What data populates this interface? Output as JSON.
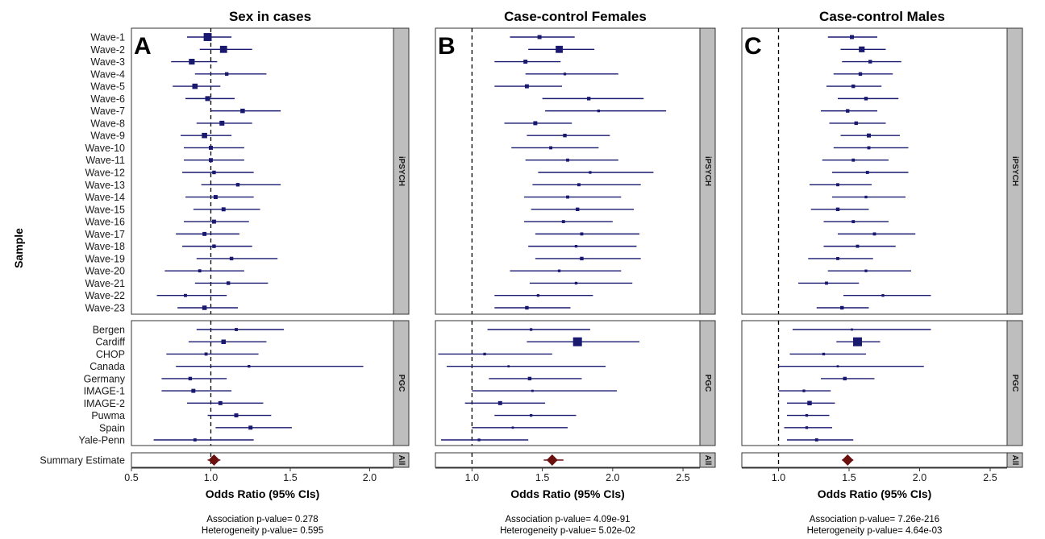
{
  "chart_data": {
    "type": "forest",
    "y_axis_label": "Sample",
    "x_axis_label": "Odds Ratio (95% CIs)",
    "reference_line": 1.0,
    "point_color": "#191970",
    "summary_color": "#6b0f0f",
    "strip_color": "#bebebe",
    "groups": [
      {
        "name": "iPSYCH",
        "rows": [
          "Wave-1",
          "Wave-2",
          "Wave-3",
          "Wave-4",
          "Wave-5",
          "Wave-6",
          "Wave-7",
          "Wave-8",
          "Wave-9",
          "Wave-10",
          "Wave-11",
          "Wave-12",
          "Wave-13",
          "Wave-14",
          "Wave-15",
          "Wave-16",
          "Wave-17",
          "Wave-18",
          "Wave-19",
          "Wave-20",
          "Wave-21",
          "Wave-22",
          "Wave-23"
        ]
      },
      {
        "name": "PGC",
        "rows": [
          "Bergen",
          "Cardiff",
          "CHOP",
          "Canada",
          "Germany",
          "IMAGE-1",
          "IMAGE-2",
          "Puwma",
          "Spain",
          "Yale-Penn"
        ]
      },
      {
        "name": "All",
        "rows": [
          "Summary Estimate"
        ]
      }
    ],
    "panels": [
      {
        "letter": "A",
        "title": "Sex in cases",
        "xlim": [
          0.5,
          2.15
        ],
        "xticks": [
          "0.5",
          "1.0",
          "1.5",
          "2.0"
        ],
        "association_p": "Association p-value= 0.278",
        "heterogeneity_p": "Heterogeneity p-value= 0.595",
        "estimates": {
          "iPSYCH": [
            [
              0.98,
              0.85,
              1.13,
              9
            ],
            [
              1.08,
              0.93,
              1.26,
              8
            ],
            [
              0.88,
              0.75,
              1.04,
              6.5
            ],
            [
              1.1,
              0.9,
              1.35,
              4
            ],
            [
              0.9,
              0.76,
              1.06,
              6
            ],
            [
              0.98,
              0.84,
              1.15,
              5.5
            ],
            [
              1.2,
              1.0,
              1.44,
              5
            ],
            [
              1.07,
              0.91,
              1.26,
              5.5
            ],
            [
              0.96,
              0.81,
              1.13,
              6
            ],
            [
              1.0,
              0.83,
              1.21,
              4.5
            ],
            [
              1.0,
              0.83,
              1.21,
              4.5
            ],
            [
              1.02,
              0.82,
              1.27,
              4
            ],
            [
              1.17,
              0.94,
              1.44,
              4
            ],
            [
              1.03,
              0.84,
              1.27,
              4.5
            ],
            [
              1.08,
              0.89,
              1.31,
              4.5
            ],
            [
              1.02,
              0.83,
              1.24,
              4.5
            ],
            [
              0.96,
              0.78,
              1.18,
              4.5
            ],
            [
              1.02,
              0.82,
              1.26,
              4
            ],
            [
              1.13,
              0.91,
              1.42,
              4
            ],
            [
              0.93,
              0.71,
              1.21,
              3.5
            ],
            [
              1.11,
              0.9,
              1.36,
              4
            ],
            [
              0.84,
              0.66,
              1.1,
              3.5
            ],
            [
              0.96,
              0.79,
              1.17,
              5
            ]
          ],
          "PGC": [
            [
              1.16,
              0.91,
              1.46,
              3.5
            ],
            [
              1.08,
              0.86,
              1.35,
              5
            ],
            [
              0.97,
              0.72,
              1.3,
              3.5
            ],
            [
              1.24,
              0.78,
              1.96,
              3
            ],
            [
              0.87,
              0.69,
              1.1,
              4
            ],
            [
              0.89,
              0.69,
              1.13,
              4.5
            ],
            [
              1.06,
              0.85,
              1.33,
              4.5
            ],
            [
              1.16,
              0.98,
              1.38,
              4.5
            ],
            [
              1.25,
              1.03,
              1.51,
              4.5
            ],
            [
              0.9,
              0.64,
              1.27,
              3.5
            ]
          ],
          "All": [
            [
              1.02,
              0.98,
              1.06,
              7
            ]
          ]
        }
      },
      {
        "letter": "B",
        "title": "Case-control Females",
        "xlim": [
          0.74,
          2.62
        ],
        "xticks": [
          "1.0",
          "1.5",
          "2.0",
          "2.5"
        ],
        "association_p": "Association p-value= 4.09e-91",
        "heterogeneity_p": "Heterogeneity p-value= 5.02e-02",
        "estimates": {
          "iPSYCH": [
            [
              1.48,
              1.27,
              1.73,
              4.5
            ],
            [
              1.62,
              1.4,
              1.87,
              8
            ],
            [
              1.38,
              1.16,
              1.63,
              4.5
            ],
            [
              1.66,
              1.38,
              2.04,
              3
            ],
            [
              1.39,
              1.16,
              1.64,
              4.5
            ],
            [
              1.83,
              1.5,
              2.22,
              4
            ],
            [
              1.9,
              1.52,
              2.38,
              3
            ],
            [
              1.45,
              1.23,
              1.71,
              4.5
            ],
            [
              1.66,
              1.39,
              1.98,
              4
            ],
            [
              1.56,
              1.28,
              1.9,
              3.5
            ],
            [
              1.68,
              1.38,
              2.04,
              3.5
            ],
            [
              1.84,
              1.47,
              2.29,
              3
            ],
            [
              1.76,
              1.43,
              2.2,
              3.5
            ],
            [
              1.68,
              1.37,
              2.06,
              3.5
            ],
            [
              1.75,
              1.42,
              2.15,
              4
            ],
            [
              1.65,
              1.37,
              2.0,
              3.5
            ],
            [
              1.78,
              1.45,
              2.19,
              3.5
            ],
            [
              1.74,
              1.4,
              2.17,
              3
            ],
            [
              1.78,
              1.45,
              2.2,
              4
            ],
            [
              1.62,
              1.27,
              2.06,
              3
            ],
            [
              1.74,
              1.41,
              2.14,
              3
            ],
            [
              1.47,
              1.16,
              1.86,
              3
            ],
            [
              1.39,
              1.16,
              1.7,
              4
            ]
          ],
          "PGC": [
            [
              1.42,
              1.11,
              1.84,
              3
            ],
            [
              1.75,
              1.39,
              2.19,
              10
            ],
            [
              1.09,
              0.76,
              1.57,
              3
            ],
            [
              1.26,
              0.82,
              1.95,
              2.5
            ],
            [
              1.41,
              1.12,
              1.78,
              4
            ],
            [
              1.43,
              1.0,
              2.03,
              2.5
            ],
            [
              1.2,
              0.95,
              1.52,
              4.5
            ],
            [
              1.42,
              1.16,
              1.74,
              3
            ],
            [
              1.29,
              1.0,
              1.68,
              2.5
            ],
            [
              1.05,
              0.78,
              1.4,
              3
            ]
          ],
          "All": [
            [
              1.57,
              1.51,
              1.65,
              7
            ]
          ]
        }
      },
      {
        "letter": "C",
        "title": "Case-control Males",
        "xlim": [
          0.74,
          2.62
        ],
        "xticks": [
          "1.0",
          "1.5",
          "2.0",
          "2.5"
        ],
        "association_p": "Association p-value= 7.26e-216",
        "heterogeneity_p": "Heterogeneity p-value= 4.64e-03",
        "estimates": {
          "iPSYCH": [
            [
              1.52,
              1.35,
              1.7,
              4.5
            ],
            [
              1.59,
              1.44,
              1.76,
              6.5
            ],
            [
              1.65,
              1.45,
              1.87,
              4
            ],
            [
              1.58,
              1.39,
              1.81,
              4
            ],
            [
              1.53,
              1.34,
              1.73,
              4
            ],
            [
              1.62,
              1.42,
              1.85,
              4
            ],
            [
              1.49,
              1.3,
              1.7,
              4
            ],
            [
              1.55,
              1.36,
              1.76,
              4
            ],
            [
              1.64,
              1.44,
              1.86,
              4.5
            ],
            [
              1.64,
              1.39,
              1.92,
              3.5
            ],
            [
              1.53,
              1.31,
              1.78,
              3.5
            ],
            [
              1.63,
              1.38,
              1.92,
              3.5
            ],
            [
              1.42,
              1.22,
              1.66,
              3.5
            ],
            [
              1.62,
              1.38,
              1.9,
              3
            ],
            [
              1.42,
              1.23,
              1.64,
              4
            ],
            [
              1.53,
              1.32,
              1.78,
              3.5
            ],
            [
              1.68,
              1.42,
              1.97,
              3.5
            ],
            [
              1.56,
              1.32,
              1.83,
              3.5
            ],
            [
              1.42,
              1.21,
              1.67,
              3.5
            ],
            [
              1.62,
              1.35,
              1.94,
              3
            ],
            [
              1.34,
              1.14,
              1.57,
              3.5
            ],
            [
              1.74,
              1.46,
              2.08,
              3
            ],
            [
              1.45,
              1.27,
              1.64,
              4
            ]
          ],
          "PGC": [
            [
              1.52,
              1.1,
              2.08,
              2.5
            ],
            [
              1.56,
              1.41,
              1.72,
              10
            ],
            [
              1.32,
              1.08,
              1.62,
              3
            ],
            [
              1.42,
              1.0,
              2.03,
              2.5
            ],
            [
              1.47,
              1.3,
              1.68,
              4
            ],
            [
              1.18,
              1.0,
              1.37,
              3
            ],
            [
              1.22,
              1.06,
              1.4,
              5
            ],
            [
              1.2,
              1.06,
              1.36,
              3
            ],
            [
              1.2,
              1.04,
              1.38,
              3
            ],
            [
              1.27,
              1.06,
              1.53,
              3.5
            ]
          ],
          "All": [
            [
              1.49,
              1.45,
              1.53,
              7
            ]
          ]
        }
      }
    ]
  }
}
